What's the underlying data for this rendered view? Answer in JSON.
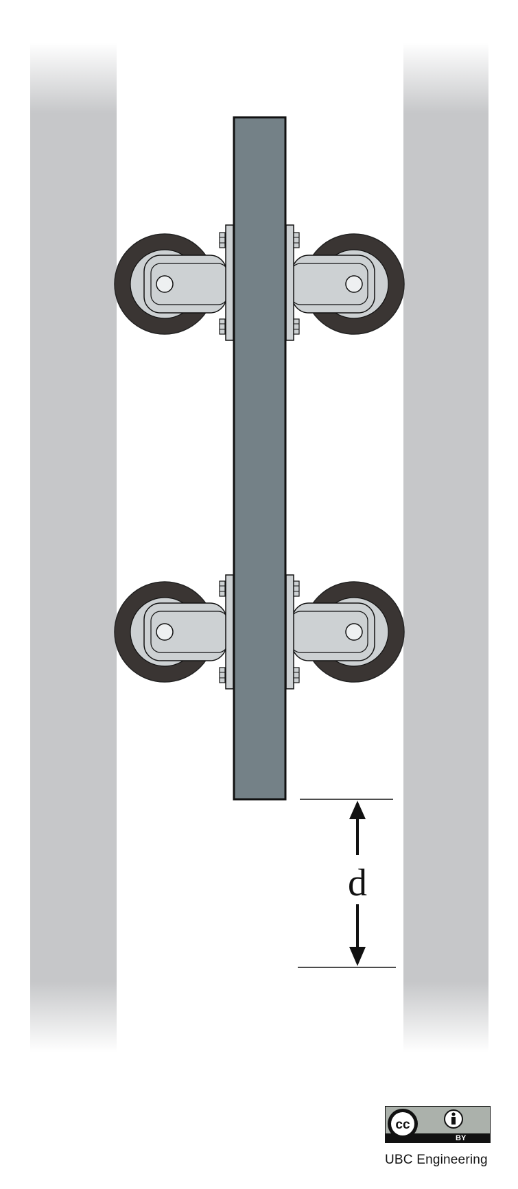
{
  "diagram": {
    "dimension_label": "d"
  },
  "license": {
    "badge_cc": "cc",
    "badge_by": "BY",
    "credit": "UBC Engineering"
  },
  "colors": {
    "rail": "#c6c7c9",
    "beam": "#748187",
    "wheel": "#3a3533",
    "bracket": "#cdd1d3",
    "outline": "#111111"
  },
  "icons": [
    "creative-commons-icon",
    "person-attribution-icon"
  ]
}
